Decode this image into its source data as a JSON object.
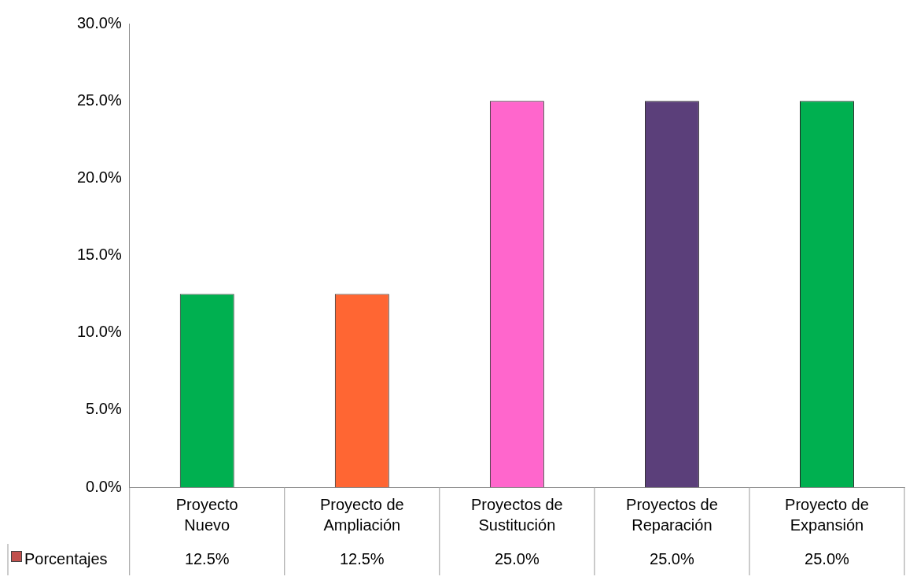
{
  "chart_data": {
    "type": "bar",
    "categories": [
      "Proyecto Nuevo",
      "Proyecto de Ampliación",
      "Proyectos de Sustitución",
      "Proyectos de Reparación",
      "Proyecto de Expansión"
    ],
    "series": [
      {
        "name": "Porcentajes",
        "color": "#c0504d",
        "colors": [
          "#00b050",
          "#ff6633",
          "#ff66cc",
          "#5b3f7a",
          "#00b050"
        ],
        "values": [
          12.5,
          12.5,
          25,
          25,
          25
        ],
        "value_labels": [
          "12.5%",
          "12.5%",
          "25.0%",
          "25.0%",
          "25.0%"
        ]
      }
    ],
    "ylim": [
      0,
      30
    ],
    "yticks": [
      {
        "value": 0,
        "label": "0.0%"
      },
      {
        "value": 5,
        "label": "5.0%"
      },
      {
        "value": 10,
        "label": "10.0%"
      },
      {
        "value": 15,
        "label": "15.0%"
      },
      {
        "value": 20,
        "label": "20.0%"
      },
      {
        "value": 25,
        "label": "25.0%"
      },
      {
        "value": 30,
        "label": "30.0%"
      }
    ],
    "grid": false
  }
}
